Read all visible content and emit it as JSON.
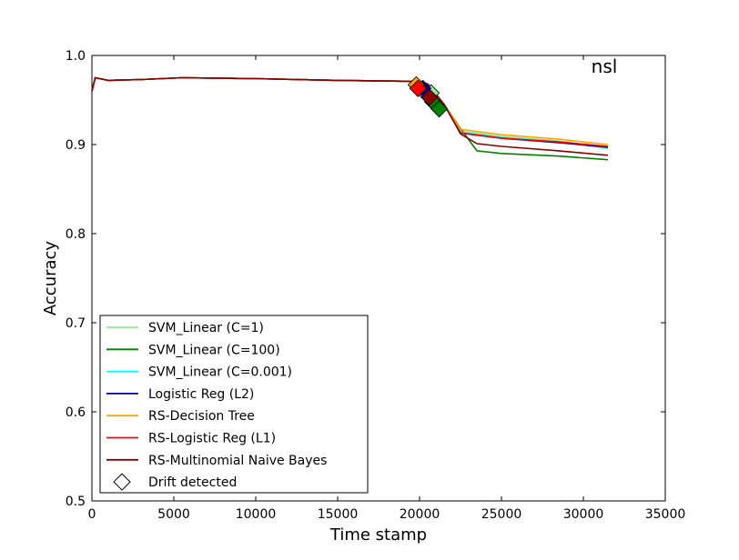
{
  "chart_data": {
    "type": "line",
    "title": "nsl",
    "xlabel": "Time stamp",
    "ylabel": "Accuracy",
    "xlim": [
      0,
      35000
    ],
    "ylim": [
      0.5,
      1.0
    ],
    "x_ticks": [
      0,
      5000,
      10000,
      15000,
      20000,
      25000,
      30000,
      35000
    ],
    "x_tick_labels": [
      "0",
      "5000",
      "10000",
      "15000",
      "20000",
      "25000",
      "30000",
      "35000"
    ],
    "y_ticks": [
      0.5,
      0.6,
      0.7,
      0.8,
      0.9,
      1.0
    ],
    "y_tick_labels": [
      "0.5",
      "0.6",
      "0.7",
      "0.8",
      "0.9",
      "1.0"
    ],
    "grid": false,
    "legend_position": "lower-left",
    "series": [
      {
        "name": "SVM_Linear (C=1)",
        "color": "#90ee90",
        "points": [
          [
            0,
            0.96
          ],
          [
            200,
            0.975
          ],
          [
            1000,
            0.972
          ],
          [
            3000,
            0.973
          ],
          [
            5500,
            0.975
          ],
          [
            10000,
            0.974
          ],
          [
            15000,
            0.972
          ],
          [
            19500,
            0.971
          ],
          [
            20500,
            0.968
          ],
          [
            21500,
            0.945
          ],
          [
            22500,
            0.915
          ],
          [
            25000,
            0.909
          ],
          [
            28500,
            0.904
          ],
          [
            31500,
            0.896
          ]
        ],
        "drift": [
          [
            20700,
            0.958
          ]
        ]
      },
      {
        "name": "SVM_Linear (C=100)",
        "color": "#008000",
        "points": [
          [
            0,
            0.96
          ],
          [
            200,
            0.975
          ],
          [
            1000,
            0.972
          ],
          [
            3000,
            0.973
          ],
          [
            5500,
            0.975
          ],
          [
            10000,
            0.974
          ],
          [
            15000,
            0.972
          ],
          [
            19500,
            0.971
          ],
          [
            20500,
            0.968
          ],
          [
            21500,
            0.945
          ],
          [
            22500,
            0.918
          ],
          [
            23500,
            0.893
          ],
          [
            25000,
            0.89
          ],
          [
            28500,
            0.887
          ],
          [
            31500,
            0.883
          ]
        ],
        "drift": [
          [
            20800,
            0.948
          ],
          [
            21200,
            0.94
          ]
        ]
      },
      {
        "name": "SVM_Linear (C=0.001)",
        "color": "#00ffff",
        "points": [
          [
            0,
            0.96
          ],
          [
            200,
            0.975
          ],
          [
            1000,
            0.972
          ],
          [
            3000,
            0.973
          ],
          [
            5500,
            0.975
          ],
          [
            10000,
            0.974
          ],
          [
            15000,
            0.972
          ],
          [
            19500,
            0.971
          ],
          [
            20500,
            0.968
          ],
          [
            21500,
            0.945
          ],
          [
            22500,
            0.914
          ],
          [
            25000,
            0.908
          ],
          [
            28500,
            0.903
          ],
          [
            31500,
            0.896
          ]
        ],
        "drift": [
          [
            20100,
            0.962
          ]
        ]
      },
      {
        "name": "Logistic Reg (L2)",
        "color": "#00008b",
        "points": [
          [
            0,
            0.96
          ],
          [
            200,
            0.975
          ],
          [
            1000,
            0.972
          ],
          [
            3000,
            0.973
          ],
          [
            5500,
            0.975
          ],
          [
            10000,
            0.974
          ],
          [
            15000,
            0.972
          ],
          [
            19500,
            0.971
          ],
          [
            20500,
            0.968
          ],
          [
            21500,
            0.945
          ],
          [
            22500,
            0.913
          ],
          [
            25000,
            0.907
          ],
          [
            28500,
            0.902
          ],
          [
            31500,
            0.897
          ]
        ],
        "drift": [
          [
            20200,
            0.963
          ]
        ]
      },
      {
        "name": "RS-Decision Tree",
        "color": "#ffa500",
        "points": [
          [
            0,
            0.96
          ],
          [
            200,
            0.975
          ],
          [
            1000,
            0.972
          ],
          [
            3000,
            0.973
          ],
          [
            5500,
            0.975
          ],
          [
            10000,
            0.974
          ],
          [
            15000,
            0.972
          ],
          [
            19500,
            0.971
          ],
          [
            20500,
            0.968
          ],
          [
            21500,
            0.945
          ],
          [
            22500,
            0.917
          ],
          [
            25000,
            0.911
          ],
          [
            28500,
            0.906
          ],
          [
            31500,
            0.9
          ]
        ],
        "drift": [
          [
            19800,
            0.967
          ]
        ]
      },
      {
        "name": "RS-Logistic Reg (L1)",
        "color": "#ff0000",
        "points": [
          [
            0,
            0.96
          ],
          [
            200,
            0.975
          ],
          [
            1000,
            0.972
          ],
          [
            3000,
            0.973
          ],
          [
            5500,
            0.975
          ],
          [
            10000,
            0.974
          ],
          [
            15000,
            0.972
          ],
          [
            19500,
            0.971
          ],
          [
            20500,
            0.968
          ],
          [
            21500,
            0.945
          ],
          [
            22500,
            0.913
          ],
          [
            25000,
            0.907
          ],
          [
            28500,
            0.903
          ],
          [
            31500,
            0.898
          ]
        ],
        "drift": [
          [
            19900,
            0.963
          ]
        ]
      },
      {
        "name": "RS-Multinomial Naive Bayes",
        "color": "#8b0000",
        "points": [
          [
            0,
            0.96
          ],
          [
            200,
            0.975
          ],
          [
            1000,
            0.972
          ],
          [
            3000,
            0.973
          ],
          [
            5500,
            0.975
          ],
          [
            10000,
            0.974
          ],
          [
            15000,
            0.972
          ],
          [
            19500,
            0.971
          ],
          [
            20500,
            0.968
          ],
          [
            21500,
            0.945
          ],
          [
            22500,
            0.912
          ],
          [
            23500,
            0.901
          ],
          [
            25000,
            0.898
          ],
          [
            28500,
            0.893
          ],
          [
            31500,
            0.888
          ]
        ],
        "drift": [
          [
            20600,
            0.953
          ]
        ]
      }
    ],
    "drift_legend_label": "Drift detected"
  }
}
